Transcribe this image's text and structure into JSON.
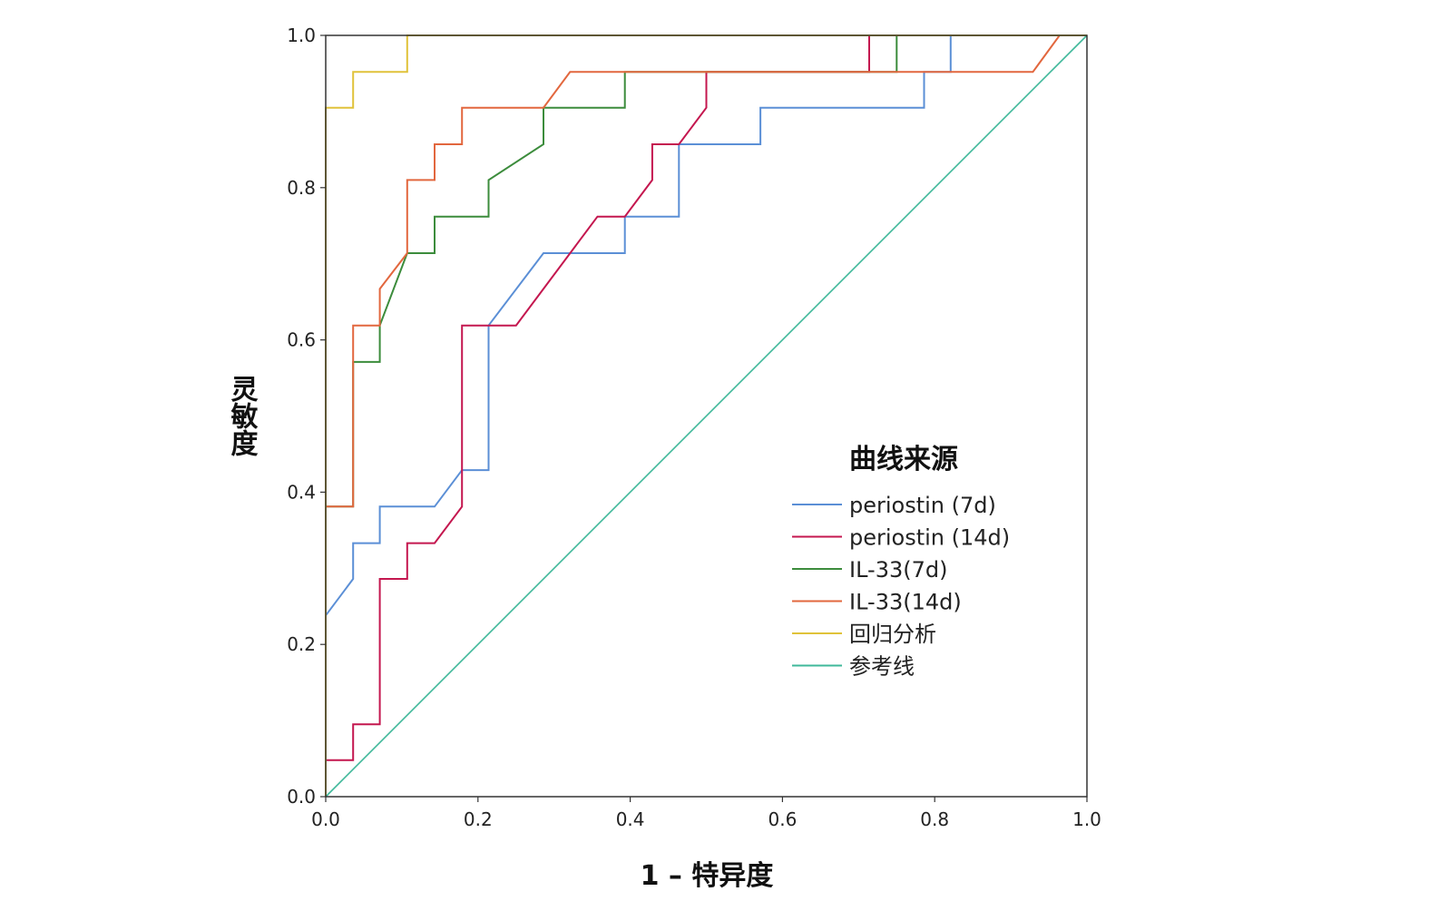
{
  "chart_data": {
    "type": "line",
    "title": "",
    "xlabel": "1 – 特异度",
    "ylabel": "灵敏度",
    "xlim": [
      0,
      1
    ],
    "ylim": [
      0,
      1
    ],
    "xticks": [
      "0.0",
      "0.2",
      "0.4",
      "0.6",
      "0.8",
      "1.0"
    ],
    "yticks": [
      "0.0",
      "0.2",
      "0.4",
      "0.6",
      "0.8",
      "1.0"
    ],
    "grid": false,
    "legend_title": "曲线来源",
    "legend_position": "right-center",
    "series": [
      {
        "name": "periostin (7d)",
        "color": "#5b8fd6",
        "x": [
          0,
          0.036,
          0.036,
          0.071,
          0.071,
          0.143,
          0.179,
          0.214,
          0.214,
          0.286,
          0.393,
          0.393,
          0.464,
          0.464,
          0.571,
          0.571,
          0.786,
          0.786,
          0.821,
          0.821,
          1.0
        ],
        "y": [
          0.238,
          0.286,
          0.333,
          0.333,
          0.381,
          0.381,
          0.429,
          0.429,
          0.619,
          0.714,
          0.714,
          0.762,
          0.762,
          0.857,
          0.857,
          0.905,
          0.905,
          0.952,
          0.952,
          1.0,
          1.0
        ]
      },
      {
        "name": "periostin (14d)",
        "color": "#c4174f",
        "x": [
          0,
          0,
          0.036,
          0.036,
          0.071,
          0.071,
          0.107,
          0.107,
          0.143,
          0.179,
          0.179,
          0.25,
          0.357,
          0.393,
          0.429,
          0.429,
          0.464,
          0.5,
          0.5,
          0.714,
          0.714,
          1.0
        ],
        "y": [
          0,
          0.048,
          0.048,
          0.095,
          0.095,
          0.286,
          0.286,
          0.333,
          0.333,
          0.381,
          0.619,
          0.619,
          0.762,
          0.762,
          0.81,
          0.857,
          0.857,
          0.905,
          0.952,
          0.952,
          1.0,
          1.0
        ]
      },
      {
        "name": "IL-33(7d)",
        "color": "#3c8c3c",
        "x": [
          0,
          0,
          0.036,
          0.036,
          0.071,
          0.071,
          0.107,
          0.143,
          0.143,
          0.214,
          0.214,
          0.286,
          0.286,
          0.393,
          0.393,
          0.75,
          0.75,
          1.0
        ],
        "y": [
          0,
          0.381,
          0.381,
          0.571,
          0.571,
          0.619,
          0.714,
          0.714,
          0.762,
          0.762,
          0.81,
          0.857,
          0.905,
          0.905,
          0.952,
          0.952,
          1.0,
          1.0
        ]
      },
      {
        "name": "IL-33(14d)",
        "color": "#e2673e",
        "x": [
          0,
          0,
          0.036,
          0.036,
          0.071,
          0.071,
          0.107,
          0.107,
          0.143,
          0.143,
          0.179,
          0.179,
          0.286,
          0.321,
          0.929,
          0.964,
          1.0
        ],
        "y": [
          0,
          0.381,
          0.381,
          0.619,
          0.619,
          0.667,
          0.714,
          0.81,
          0.81,
          0.857,
          0.857,
          0.905,
          0.905,
          0.952,
          0.952,
          1.0,
          1.0
        ]
      },
      {
        "name": "回归分析",
        "color": "#e0c23a",
        "x": [
          0,
          0,
          0.036,
          0.036,
          0.107,
          0.107,
          1.0
        ],
        "y": [
          0,
          0.905,
          0.905,
          0.952,
          0.952,
          1.0,
          1.0
        ]
      },
      {
        "name": "参考线",
        "color": "#3fb89a",
        "x": [
          0,
          1
        ],
        "y": [
          0,
          1
        ]
      }
    ]
  }
}
